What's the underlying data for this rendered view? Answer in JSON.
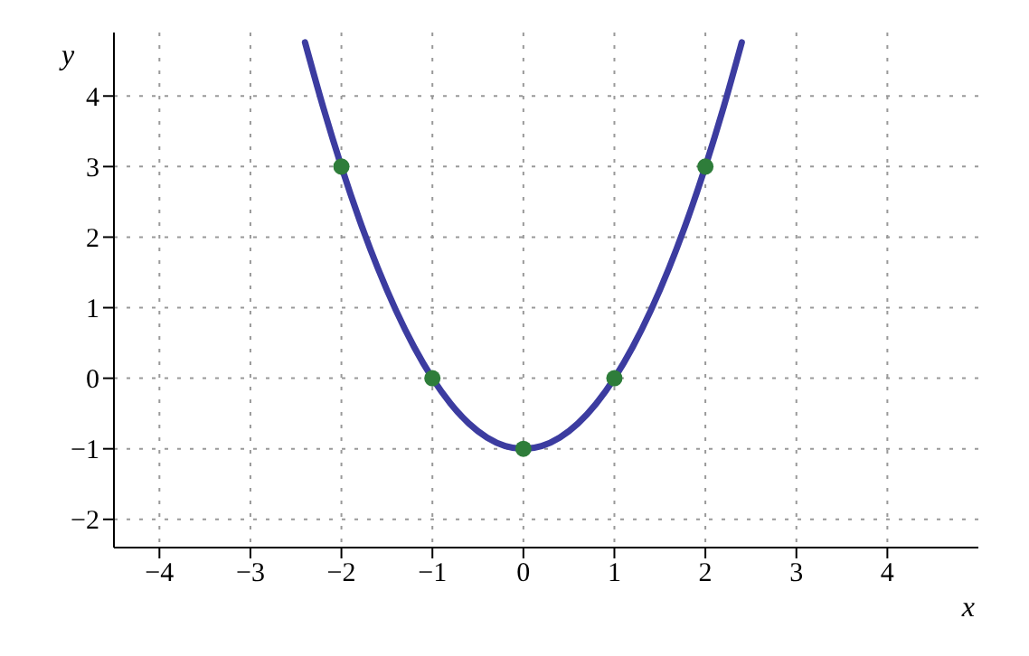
{
  "chart_data": {
    "type": "line",
    "xlabel": "x",
    "ylabel": "y",
    "xlim": [
      -4.5,
      5
    ],
    "ylim": [
      -2.4,
      4.9
    ],
    "xticks": [
      -4,
      -3,
      -2,
      -1,
      0,
      1,
      2,
      3,
      4
    ],
    "yticks": [
      -2,
      -1,
      0,
      1,
      2,
      3,
      4
    ],
    "grid": true,
    "series": [
      {
        "type": "line",
        "color": "#3c3ca0",
        "marker": "none",
        "line_style": "solid",
        "x": [
          -2.4,
          -2.2,
          -2.0,
          -1.8,
          -1.6,
          -1.4,
          -1.2,
          -1.0,
          -0.8,
          -0.6,
          -0.4,
          -0.2,
          0,
          0.2,
          0.4,
          0.6,
          0.8,
          1.0,
          1.2,
          1.4,
          1.6,
          1.8,
          2.0,
          2.2,
          2.4
        ],
        "values": [
          4.76,
          3.84,
          3.0,
          2.24,
          1.56,
          0.96,
          0.44,
          0,
          -0.36,
          -0.64,
          -0.84,
          -0.96,
          -1,
          -0.96,
          -0.84,
          -0.64,
          -0.36,
          0,
          0.44,
          0.96,
          1.56,
          2.24,
          3.0,
          3.84,
          4.76
        ]
      },
      {
        "type": "scatter",
        "color": "#2e7d3a",
        "marker": "circle",
        "x": [
          -2,
          -1,
          0,
          1,
          2
        ],
        "values": [
          3,
          0,
          -1,
          0,
          3
        ]
      }
    ]
  }
}
